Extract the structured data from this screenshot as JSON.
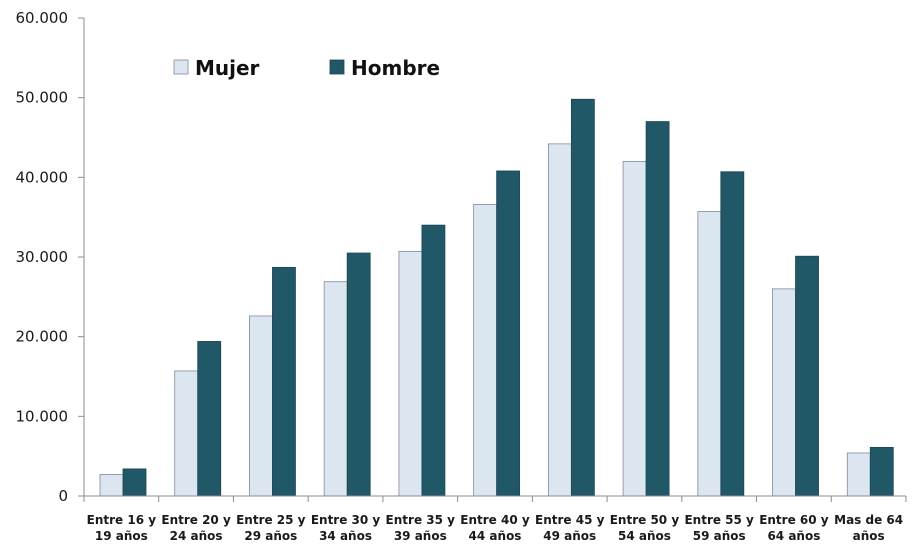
{
  "chart_data": {
    "type": "bar",
    "title": "",
    "xlabel": "",
    "ylabel": "",
    "ylim": [
      0,
      60000
    ],
    "yticks": [
      0,
      10000,
      20000,
      30000,
      40000,
      50000,
      60000
    ],
    "ytick_labels": [
      "0",
      "10.000",
      "20.000",
      "30.000",
      "40.000",
      "50.000",
      "60.000"
    ],
    "grid": false,
    "legend_position": "top-left",
    "categories": [
      [
        "Entre 16 y",
        "19 años"
      ],
      [
        "Entre 20 y",
        "24 años"
      ],
      [
        "Entre 25 y",
        "29 años"
      ],
      [
        "Entre 30 y",
        "34 años"
      ],
      [
        "Entre 35 y",
        "39 años"
      ],
      [
        "Entre 40 y",
        "44 años"
      ],
      [
        "Entre 45 y",
        "49 años"
      ],
      [
        "Entre 50 y",
        "54 años"
      ],
      [
        "Entre 55 y",
        "59 años"
      ],
      [
        "Entre 60 y",
        "64 años"
      ],
      [
        "Mas de 64",
        "años"
      ]
    ],
    "series": [
      {
        "name": "Mujer",
        "color": "#dce6f1",
        "stroke": "#7f8c99",
        "values": [
          2700,
          15700,
          22600,
          26900,
          30700,
          36600,
          44200,
          42000,
          35700,
          26000,
          5400
        ]
      },
      {
        "name": "Hombre",
        "color": "#215868",
        "stroke": "#1a4654",
        "values": [
          3400,
          19400,
          28700,
          30500,
          34000,
          40800,
          49800,
          47000,
          40700,
          30100,
          6100
        ]
      }
    ]
  }
}
